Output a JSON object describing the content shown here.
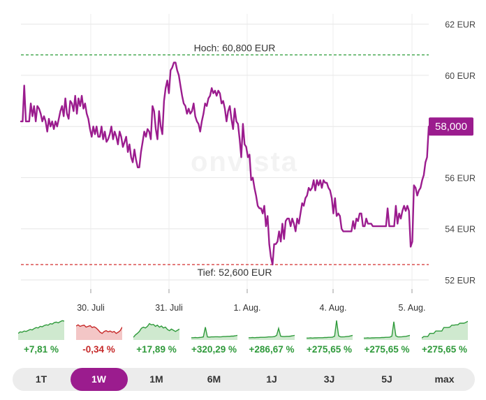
{
  "chart_data": {
    "type": "line",
    "y_unit": "EUR",
    "yticks": [
      {
        "value": 52,
        "label": "52 EUR"
      },
      {
        "value": 54,
        "label": "54 EUR"
      },
      {
        "value": 56,
        "label": "56 EUR"
      },
      {
        "value": 58,
        "label": ""
      },
      {
        "value": 60,
        "label": "60 EUR"
      },
      {
        "value": 62,
        "label": "62 EUR"
      }
    ],
    "ylim": [
      51.7,
      62.4
    ],
    "xticks": [
      "30. Juli",
      "31. Juli",
      "1. Aug.",
      "4. Aug.",
      "5. Aug."
    ],
    "grid": true,
    "line_color": "#9b1c8e",
    "high": {
      "value": 60.8,
      "label": "Hoch: 60,800 EUR",
      "color": "#2e9e3a"
    },
    "low": {
      "value": 52.6,
      "label": "Tief: 52,600 EUR",
      "color": "#d32f2f"
    },
    "last": {
      "value": 58.0,
      "label": "58,000"
    },
    "watermark": "onvista",
    "series": [
      {
        "values": [
          58.2,
          58.2,
          59.6,
          58.2,
          58.2,
          58.2,
          58.9,
          58.4,
          58.8,
          58.2,
          58.8,
          58.7,
          58.5,
          58.2,
          58.4,
          58.2,
          57.8,
          58.3,
          58.0,
          58.2,
          57.9,
          58.2,
          58.0,
          58.3,
          58.6,
          58.8,
          58.4,
          59.1,
          58.5,
          58.3,
          59.0,
          58.9,
          58.6,
          59.2,
          58.5,
          59.1,
          58.8,
          59.2,
          58.7,
          58.9,
          58.5,
          58.3,
          57.9,
          57.6,
          58.0,
          57.7,
          58.0,
          57.6,
          57.6,
          58.0,
          57.5,
          57.8,
          57.4,
          57.5,
          57.7,
          58.0,
          57.5,
          57.8,
          57.6,
          57.3,
          57.8,
          57.6,
          57.2,
          57.4,
          57.6,
          57.0,
          57.3,
          56.8,
          56.6,
          57.1,
          56.7,
          56.4,
          56.4,
          57.0,
          57.4,
          57.8,
          57.6,
          57.9,
          57.8,
          57.5,
          58.8,
          58.6,
          57.9,
          57.5,
          58.6,
          58.0,
          57.7,
          59.0,
          59.5,
          59.8,
          59.3,
          60.2,
          60.3,
          60.5,
          60.5,
          60.2,
          60.0,
          59.6,
          59.2,
          58.9,
          58.8,
          58.5,
          58.7,
          58.5,
          58.6,
          58.9,
          58.4,
          58.2,
          58.1,
          57.8,
          58.2,
          58.5,
          58.9,
          58.8,
          59.1,
          59.2,
          59.5,
          59.3,
          59.4,
          59.2,
          59.4,
          59.3,
          58.9,
          59.0,
          58.7,
          58.2,
          58.6,
          58.8,
          58.3,
          57.9,
          58.7,
          58.2,
          58.1,
          57.5,
          56.8,
          58.1,
          57.3,
          57.2,
          56.8,
          56.9,
          55.9,
          56.0,
          55.6,
          55.3,
          54.9,
          54.8,
          54.8,
          54.6,
          54.9,
          54.1,
          54.5,
          53.4,
          52.9,
          52.6,
          53.4,
          53.4,
          53.5,
          53.9,
          53.5,
          54.2,
          53.6,
          54.3,
          54.4,
          54.4,
          54.1,
          54.4,
          54.2,
          53.9,
          54.4,
          54.2,
          54.6,
          55.0,
          54.9,
          55.2,
          55.3,
          55.6,
          55.5,
          55.6,
          55.9,
          55.5,
          55.9,
          55.7,
          55.9,
          55.6,
          55.9,
          55.8,
          55.8,
          55.6,
          55.5,
          55.2,
          54.6,
          55.2,
          54.5,
          54.6,
          54.5,
          54.0,
          53.9,
          53.9,
          53.9,
          53.9,
          53.9,
          53.9,
          54.3,
          54.0,
          54.4,
          54.3,
          54.6,
          54.6,
          54.1,
          54.1,
          54.4,
          54.2,
          54.2,
          54.2,
          54.1,
          54.1,
          54.1,
          54.1,
          54.1,
          54.1,
          54.1,
          54.1,
          54.1,
          54.8,
          54.1,
          54.1,
          54.1,
          54.1,
          54.9,
          54.2,
          54.6,
          54.4,
          54.7,
          54.9,
          54.7,
          54.9,
          54.7,
          53.3,
          53.5,
          55.7,
          55.6,
          55.3,
          55.5,
          55.6,
          55.9,
          56.1,
          56.6,
          56.8,
          58.0
        ]
      }
    ]
  },
  "sparklines": [
    {
      "period": "1T",
      "pct": "+7,81 %",
      "trend": "pos",
      "values": [
        0.3,
        0.38,
        0.36,
        0.42,
        0.4,
        0.45,
        0.5,
        0.48,
        0.55,
        0.6,
        0.58,
        0.66,
        0.64,
        0.7,
        0.74,
        0.72,
        0.8,
        0.78,
        0.85,
        0.88,
        0.84,
        0.9,
        0.95,
        0.93
      ]
    },
    {
      "period": "1W",
      "pct": "-0,34 %",
      "trend": "neg",
      "values": [
        0.68,
        0.74,
        0.66,
        0.7,
        0.72,
        0.62,
        0.66,
        0.7,
        0.6,
        0.64,
        0.58,
        0.48,
        0.36,
        0.3,
        0.4,
        0.44,
        0.38,
        0.42,
        0.36,
        0.4,
        0.3,
        0.36,
        0.44,
        0.62
      ]
    },
    {
      "period": "1M",
      "pct": "+17,89 %",
      "trend": "pos",
      "values": [
        0.1,
        0.22,
        0.3,
        0.4,
        0.56,
        0.62,
        0.58,
        0.66,
        0.8,
        0.74,
        0.76,
        0.66,
        0.72,
        0.62,
        0.68,
        0.58,
        0.62,
        0.5,
        0.44,
        0.52,
        0.46,
        0.4,
        0.46,
        0.52
      ]
    },
    {
      "period": "6M",
      "pct": "+320,29 %",
      "trend": "pos",
      "values": [
        0.08,
        0.08,
        0.09,
        0.08,
        0.09,
        0.1,
        0.12,
        0.62,
        0.12,
        0.11,
        0.12,
        0.12,
        0.13,
        0.13,
        0.12,
        0.13,
        0.14,
        0.14,
        0.15,
        0.15,
        0.16,
        0.16,
        0.18,
        0.2
      ]
    },
    {
      "period": "1J",
      "pct": "+286,67 %",
      "trend": "pos",
      "values": [
        0.08,
        0.08,
        0.09,
        0.08,
        0.09,
        0.09,
        0.1,
        0.1,
        0.1,
        0.11,
        0.12,
        0.12,
        0.13,
        0.14,
        0.2,
        0.56,
        0.16,
        0.14,
        0.14,
        0.15,
        0.15,
        0.16,
        0.18,
        0.2
      ]
    },
    {
      "period": "3J",
      "pct": "+275,65 %",
      "trend": "pos",
      "values": [
        0.06,
        0.06,
        0.07,
        0.06,
        0.07,
        0.07,
        0.08,
        0.08,
        0.08,
        0.09,
        0.09,
        0.1,
        0.1,
        0.11,
        0.16,
        0.96,
        0.18,
        0.12,
        0.12,
        0.13,
        0.14,
        0.15,
        0.17,
        0.2
      ]
    },
    {
      "period": "5J",
      "pct": "+275,65 %",
      "trend": "pos",
      "values": [
        0.06,
        0.06,
        0.07,
        0.06,
        0.07,
        0.07,
        0.08,
        0.08,
        0.08,
        0.09,
        0.09,
        0.1,
        0.1,
        0.11,
        0.16,
        0.9,
        0.18,
        0.12,
        0.12,
        0.13,
        0.14,
        0.15,
        0.17,
        0.2
      ]
    },
    {
      "period": "max",
      "pct": "+275,65 %",
      "trend": "pos",
      "values": [
        0.06,
        0.14,
        0.14,
        0.14,
        0.3,
        0.3,
        0.3,
        0.42,
        0.42,
        0.42,
        0.42,
        0.6,
        0.6,
        0.6,
        0.62,
        0.72,
        0.72,
        0.74,
        0.74,
        0.82,
        0.82,
        0.82,
        0.86,
        0.92
      ]
    }
  ],
  "ranges": {
    "items": [
      "1T",
      "1W",
      "1M",
      "6M",
      "1J",
      "3J",
      "5J",
      "max"
    ],
    "active": "1W"
  },
  "colors": {
    "accent": "#9b1c8e",
    "positive": "#2f9a3b",
    "negative": "#c62828",
    "positive_fill": "#cfe9cf",
    "negative_fill": "#f3c6c6"
  }
}
